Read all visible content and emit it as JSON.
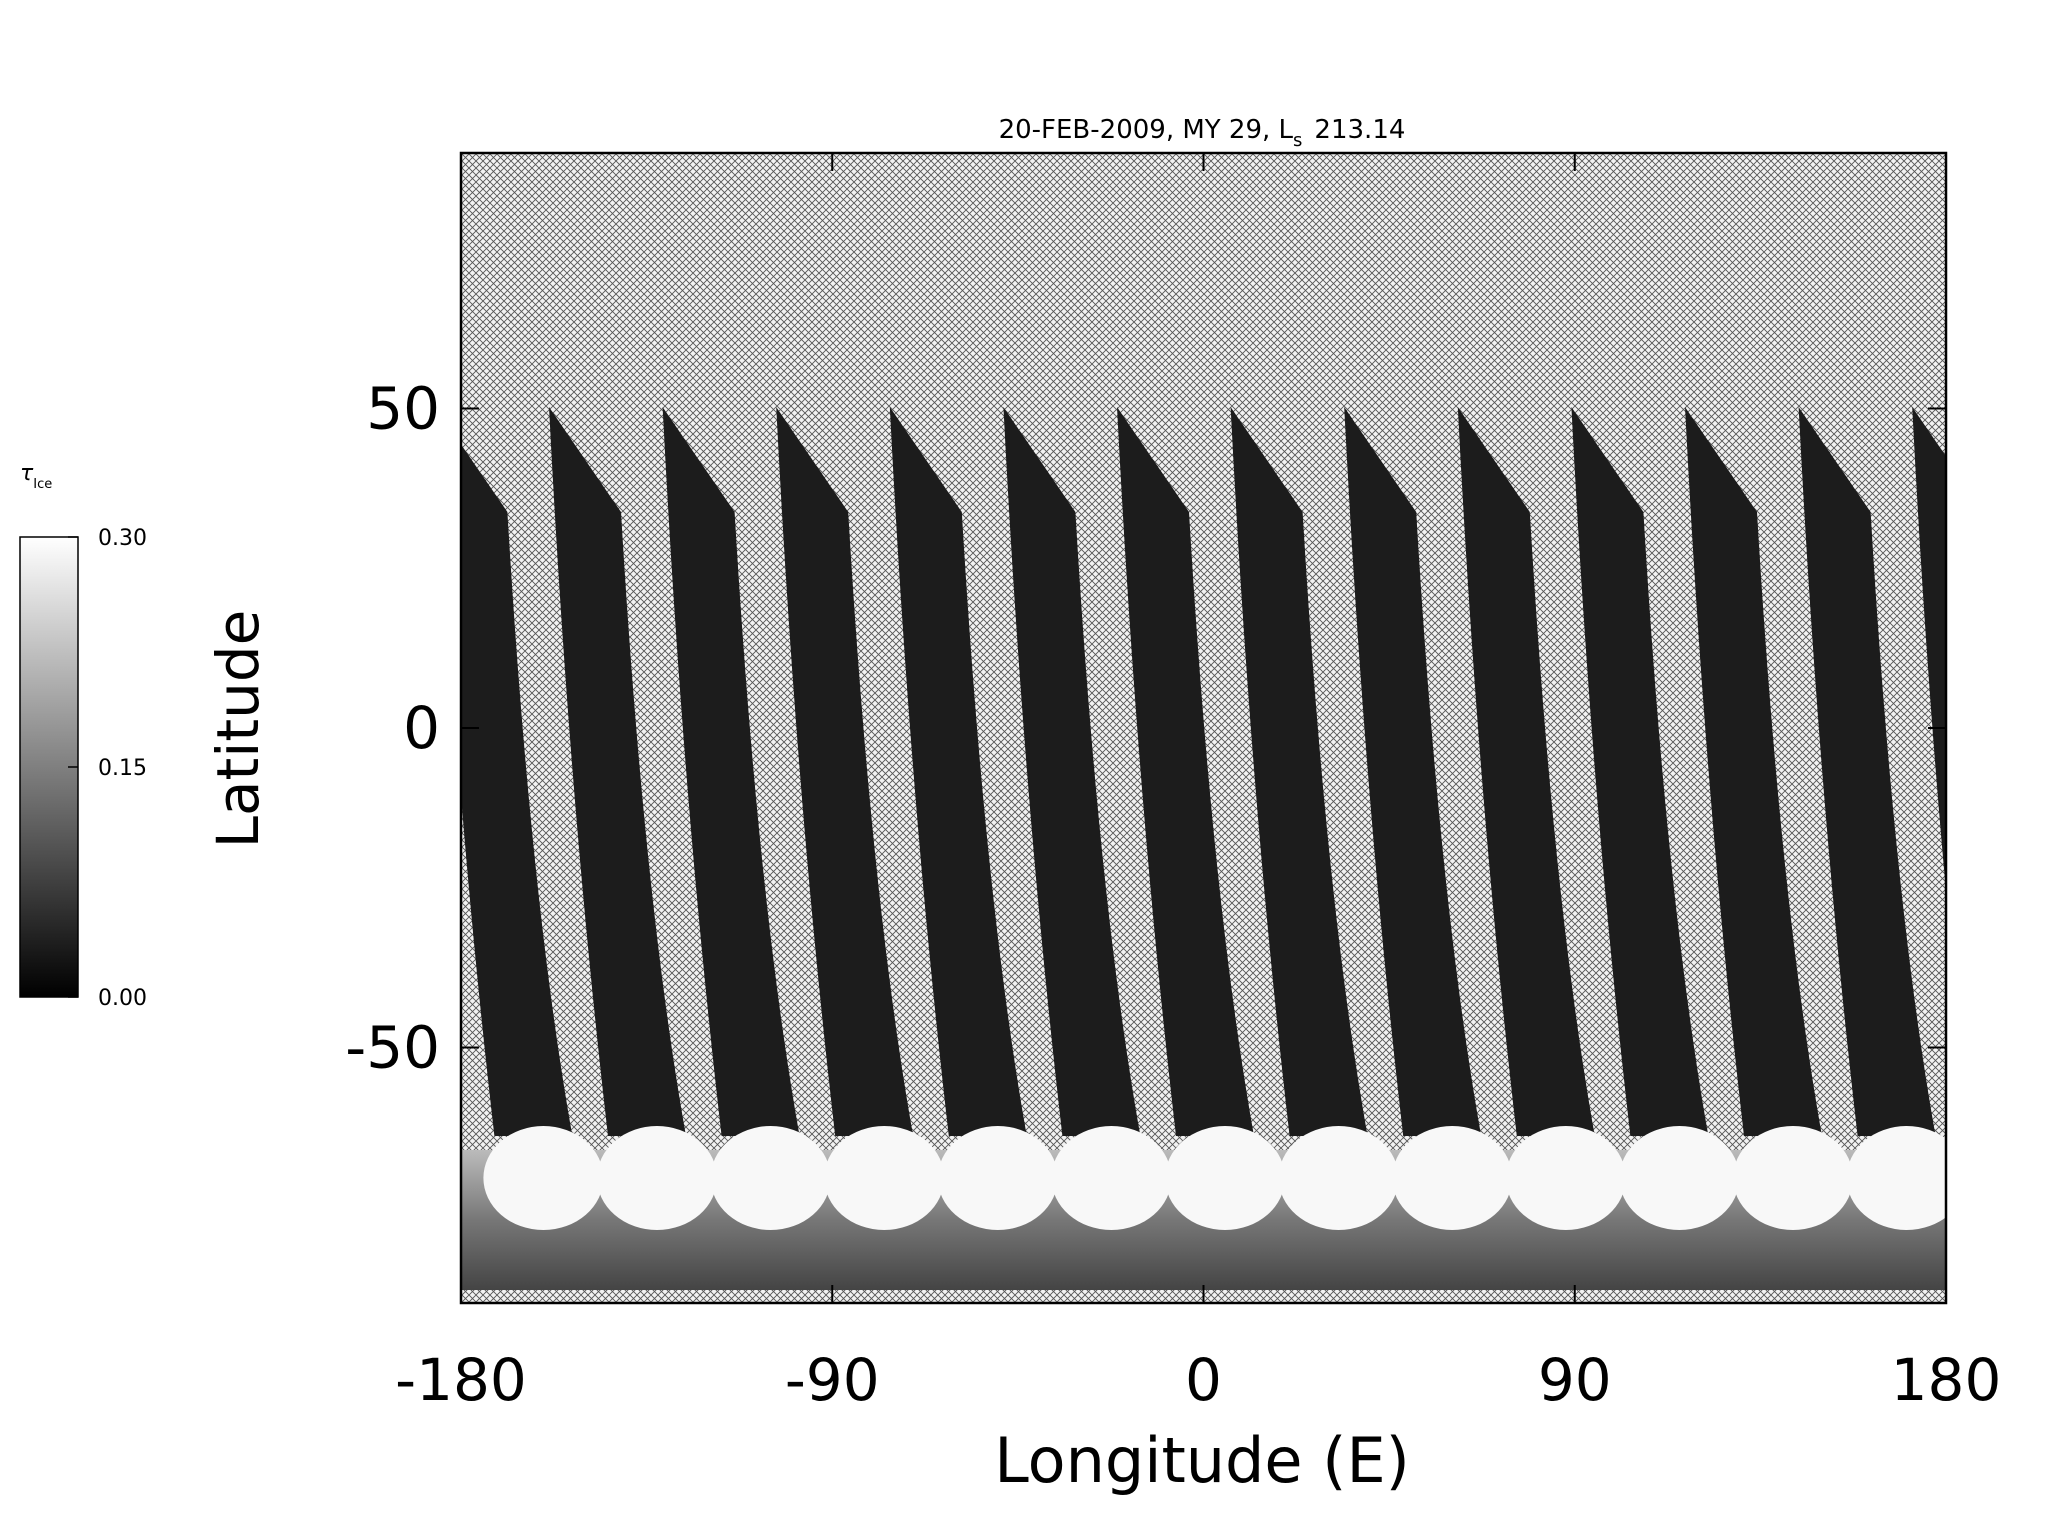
{
  "chart_data": {
    "type": "map",
    "title": {
      "text": "20-FEB-2009, MY 29,  L",
      "subscript": "s",
      "suffix": "213.14"
    },
    "xlabel": "Longitude (E)",
    "ylabel": "Latitude",
    "xlim": [
      -180,
      180
    ],
    "xticks": [
      -180,
      -90,
      0,
      90,
      180
    ],
    "ylim": [
      -90,
      90
    ],
    "yticks": [
      -50,
      0,
      50
    ],
    "colorbar": {
      "label": "τ",
      "label_subscript": "Ice",
      "lim": [
        0,
        0.3
      ],
      "ticks": [
        {
          "value": 0,
          "label": "0.00"
        },
        {
          "value": 0.15,
          "label": "0.15"
        },
        {
          "value": 0.3,
          "label": "0.30"
        }
      ],
      "colors": [
        "#000000",
        "#ffffff"
      ]
    }
  }
}
